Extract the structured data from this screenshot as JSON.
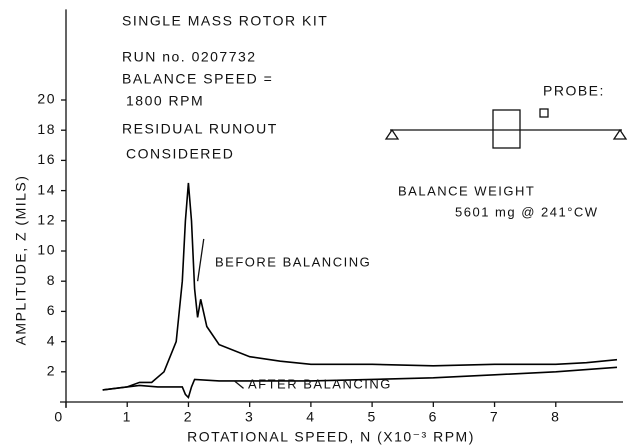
{
  "chart_data": {
    "type": "line",
    "annotations": [
      "SINGLE MASS ROTOR KIT",
      "RUN no. 0207732",
      "BALANCE SPEED =",
      "1800 RPM",
      "RESIDUAL RUNOUT",
      "CONSIDERED",
      "PROBE:",
      "BALANCE WEIGHT",
      "5601 mg @ 241°CW"
    ],
    "xlabel": "ROTATIONAL SPEED, N (X10⁻³ RPM)",
    "ylabel": "AMPLITUDE, Z (MILS)",
    "xlim": [
      0,
      9
    ],
    "xticks": [
      0,
      1,
      2,
      3,
      4,
      5,
      6,
      7,
      8
    ],
    "ylim": [
      0,
      26
    ],
    "yticks": [
      2,
      4,
      6,
      8,
      10,
      12,
      14,
      16,
      18,
      20
    ],
    "series": [
      {
        "name": "BEFORE BALANCING",
        "color": "#000000",
        "x": [
          0.6,
          1.0,
          1.2,
          1.4,
          1.6,
          1.8,
          1.9,
          1.95,
          2.0,
          2.05,
          2.1,
          2.15,
          2.2,
          2.3,
          2.5,
          3,
          3.5,
          4,
          5,
          6,
          7,
          8,
          8.5,
          9
        ],
        "values": [
          0.8,
          1.0,
          1.3,
          1.3,
          2.0,
          4.0,
          8.0,
          12.0,
          14.5,
          12.0,
          7.5,
          5.6,
          6.8,
          5.0,
          3.8,
          3.0,
          2.7,
          2.5,
          2.5,
          2.4,
          2.5,
          2.5,
          2.6,
          2.8
        ]
      },
      {
        "name": "AFTER BALANCING",
        "color": "#000000",
        "x": [
          0.6,
          1.0,
          1.2,
          1.5,
          1.9,
          1.95,
          2.0,
          2.05,
          2.1,
          2.5,
          3,
          4,
          5,
          6,
          7,
          8,
          9
        ],
        "values": [
          0.8,
          1.0,
          1.1,
          1.0,
          1.0,
          0.5,
          0.3,
          1.0,
          1.5,
          1.4,
          1.4,
          1.4,
          1.5,
          1.6,
          1.8,
          2.0,
          2.3
        ]
      }
    ]
  }
}
